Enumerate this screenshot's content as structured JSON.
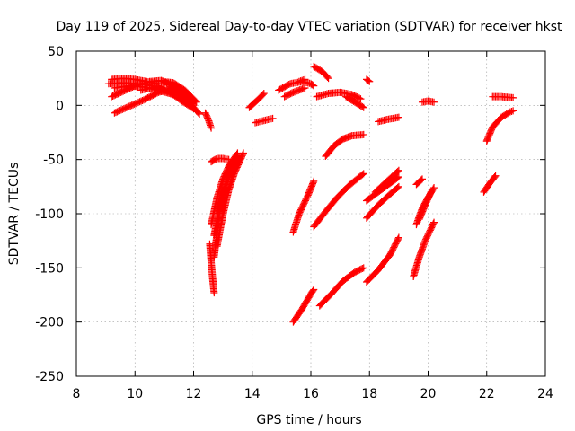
{
  "chart_data": {
    "type": "scatter",
    "title": "Day 119 of 2025, Sidereal Day-to-day VTEC variation (SDTVAR) for receiver hkst",
    "xlabel": "GPS time / hours",
    "ylabel": "SDTVAR / TECUs",
    "xlim": [
      8,
      24
    ],
    "ylim": [
      -250,
      50
    ],
    "xticks": [
      "8",
      "10",
      "12",
      "14",
      "16",
      "18",
      "20",
      "22",
      "24"
    ],
    "yticks": [
      "50",
      "0",
      "-50",
      "-100",
      "-150",
      "-200",
      "-250"
    ],
    "grid": true,
    "marker": "plus",
    "color": "#ff0000",
    "segments": [
      {
        "x": [
          9.2,
          9.6,
          10.0,
          10.4,
          10.8
        ],
        "y": [
          24,
          25,
          24,
          22,
          20
        ]
      },
      {
        "x": [
          9.1,
          9.6,
          10.1,
          10.6,
          11.0
        ],
        "y": [
          20,
          21,
          20,
          18,
          15
        ]
      },
      {
        "x": [
          9.3,
          9.8,
          10.3,
          10.8,
          11.3
        ],
        "y": [
          16,
          18,
          17,
          14,
          10
        ]
      },
      {
        "x": [
          9.2,
          9.6,
          10.0,
          10.4
        ],
        "y": [
          8,
          13,
          18,
          21
        ]
      },
      {
        "x": [
          9.3,
          9.8,
          10.3,
          10.8,
          11.3,
          11.8
        ],
        "y": [
          -7,
          -1,
          5,
          12,
          16,
          8
        ]
      },
      {
        "x": [
          10.2,
          10.7,
          11.2,
          11.6,
          12.0
        ],
        "y": [
          14,
          17,
          12,
          4,
          -3
        ]
      },
      {
        "x": [
          10.5,
          10.9,
          11.3,
          11.7,
          12.0
        ],
        "y": [
          22,
          23,
          18,
          10,
          0
        ]
      },
      {
        "x": [
          10.9,
          11.3,
          11.7,
          12.1
        ],
        "y": [
          22,
          21,
          14,
          3
        ]
      },
      {
        "x": [
          11.2,
          11.6,
          12.0,
          12.2
        ],
        "y": [
          17,
          9,
          -2,
          -8
        ]
      },
      {
        "x": [
          12.4,
          12.5,
          12.6
        ],
        "y": [
          -7,
          -13,
          -21
        ]
      },
      {
        "x": [
          12.55,
          12.6,
          12.65,
          12.7
        ],
        "y": [
          -128,
          -145,
          -160,
          -173
        ]
      },
      {
        "x": [
          12.6,
          12.8,
          13.0,
          13.2,
          13.5
        ],
        "y": [
          -110,
          -85,
          -68,
          -56,
          -44
        ]
      },
      {
        "x": [
          12.7,
          12.9,
          13.1,
          13.3,
          13.5
        ],
        "y": [
          -120,
          -92,
          -73,
          -60,
          -47
        ]
      },
      {
        "x": [
          12.8,
          13.0,
          13.2,
          13.4,
          13.7
        ],
        "y": [
          -130,
          -101,
          -78,
          -62,
          -44
        ]
      },
      {
        "x": [
          12.7,
          12.8,
          12.9,
          13.1,
          13.3
        ],
        "y": [
          -140,
          -118,
          -94,
          -72,
          -58
        ]
      },
      {
        "x": [
          12.6,
          12.8,
          13.0,
          13.2
        ],
        "y": [
          -52,
          -49,
          -49,
          -50
        ]
      },
      {
        "x": [
          13.9,
          14.1,
          14.3,
          14.4
        ],
        "y": [
          -2,
          3,
          8,
          11
        ]
      },
      {
        "x": [
          14.1,
          14.4,
          14.7
        ],
        "y": [
          -16,
          -14,
          -12
        ]
      },
      {
        "x": [
          14.9,
          15.3,
          15.7,
          16.0,
          16.1
        ],
        "y": [
          14,
          20,
          22,
          20,
          18
        ]
      },
      {
        "x": [
          15.1,
          15.4,
          15.8
        ],
        "y": [
          8,
          12,
          16
        ]
      },
      {
        "x": [
          15.6,
          15.8
        ],
        "y": [
          22,
          24
        ]
      },
      {
        "x": [
          16.1,
          16.4,
          16.6
        ],
        "y": [
          36,
          31,
          25
        ]
      },
      {
        "x": [
          16.2,
          16.6,
          17.0,
          17.4,
          17.7
        ],
        "y": [
          8,
          11,
          12,
          10,
          6
        ]
      },
      {
        "x": [
          17.2,
          17.5,
          17.8
        ],
        "y": [
          8,
          3,
          -2
        ]
      },
      {
        "x": [
          17.9,
          18.0
        ],
        "y": [
          24,
          22
        ]
      },
      {
        "x": [
          16.5,
          16.8,
          17.1,
          17.4,
          17.8
        ],
        "y": [
          -47,
          -37,
          -31,
          -28,
          -27
        ]
      },
      {
        "x": [
          18.3,
          18.6,
          19.0
        ],
        "y": [
          -15,
          -13,
          -11
        ]
      },
      {
        "x": [
          19.8,
          20.0,
          20.2
        ],
        "y": [
          3,
          4,
          3
        ]
      },
      {
        "x": [
          22.2,
          22.5,
          22.9
        ],
        "y": [
          8,
          8,
          7
        ]
      },
      {
        "x": [
          22.0,
          22.2,
          22.5,
          22.8,
          22.9
        ],
        "y": [
          -33,
          -20,
          -11,
          -6,
          -5
        ]
      },
      {
        "x": [
          15.4,
          15.6,
          15.9,
          16.1
        ],
        "y": [
          -117,
          -100,
          -83,
          -70
        ]
      },
      {
        "x": [
          16.1,
          16.5,
          16.9,
          17.3,
          17.8
        ],
        "y": [
          -112,
          -98,
          -85,
          -74,
          -63
        ]
      },
      {
        "x": [
          17.9,
          18.3,
          18.7,
          19.0
        ],
        "y": [
          -88,
          -80,
          -72,
          -66
        ]
      },
      {
        "x": [
          17.9,
          18.3,
          18.7,
          19.0
        ],
        "y": [
          -104,
          -92,
          -82,
          -75
        ]
      },
      {
        "x": [
          18.2,
          18.6,
          19.0
        ],
        "y": [
          -80,
          -70,
          -60
        ]
      },
      {
        "x": [
          19.6,
          19.8
        ],
        "y": [
          -73,
          -68
        ]
      },
      {
        "x": [
          19.6,
          19.8,
          20.0,
          20.2
        ],
        "y": [
          -110,
          -95,
          -85,
          -76
        ]
      },
      {
        "x": [
          19.7,
          19.9,
          20.1
        ],
        "y": [
          -105,
          -92,
          -80
        ]
      },
      {
        "x": [
          21.9,
          22.1,
          22.3
        ],
        "y": [
          -80,
          -72,
          -65
        ]
      },
      {
        "x": [
          15.4,
          15.7,
          16.0,
          16.1
        ],
        "y": [
          -200,
          -188,
          -174,
          -170
        ]
      },
      {
        "x": [
          16.3,
          16.7,
          17.1,
          17.5,
          17.8
        ],
        "y": [
          -185,
          -174,
          -162,
          -154,
          -150
        ]
      },
      {
        "x": [
          17.9,
          18.3,
          18.7,
          19.0
        ],
        "y": [
          -163,
          -152,
          -138,
          -122
        ]
      },
      {
        "x": [
          19.5,
          19.7,
          19.9,
          20.2
        ],
        "y": [
          -158,
          -140,
          -125,
          -108
        ]
      }
    ]
  }
}
